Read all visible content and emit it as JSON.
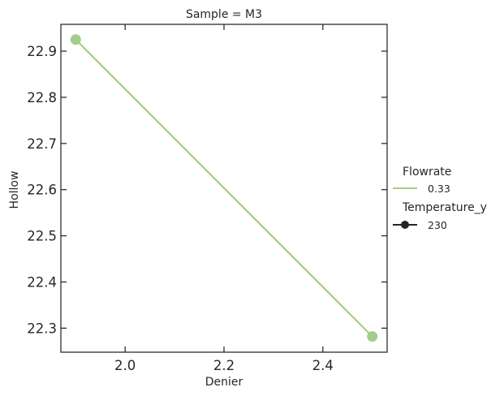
{
  "chart_data": {
    "type": "line",
    "title": "Sample = M3",
    "xlabel": "Denier",
    "ylabel": "Hollow",
    "xlim": [
      1.87,
      2.53
    ],
    "ylim": [
      22.248,
      22.958
    ],
    "x_ticks": [
      2.0,
      2.2,
      2.4
    ],
    "x_tick_labels": [
      "2.0",
      "2.2",
      "2.4"
    ],
    "y_ticks": [
      22.3,
      22.4,
      22.5,
      22.6,
      22.7,
      22.8,
      22.9
    ],
    "y_tick_labels": [
      "22.3",
      "22.4",
      "22.5",
      "22.6",
      "22.7",
      "22.8",
      "22.9"
    ],
    "grid": false,
    "legend_position": "right",
    "series": [
      {
        "name": "0.33",
        "color": "#a3cd8d",
        "x": [
          1.9,
          2.5
        ],
        "y": [
          22.925,
          22.282
        ]
      }
    ],
    "legend": {
      "hue_title": "Flowrate",
      "hue_entries": [
        "0.33"
      ],
      "style_title": "Temperature_y",
      "style_entries": [
        "230"
      ]
    }
  }
}
